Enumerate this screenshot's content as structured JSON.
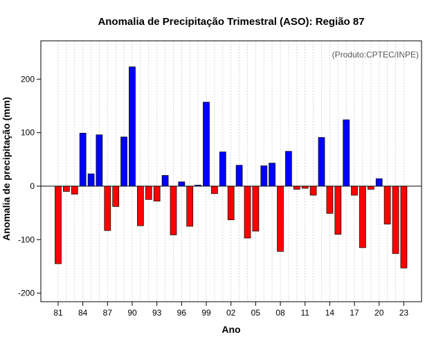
{
  "chart_data": {
    "type": "bar",
    "title": "Anomalia de Precipitação Trimestral (ASO): Região 87",
    "xlabel": "Ano",
    "ylabel": "Anomalia de precipitação (mm)",
    "credit": "(Produto:CPTEC/INPE)",
    "ylim": [
      -200,
      280
    ],
    "yticks": [
      -200,
      -100,
      0,
      100,
      200
    ],
    "xtick_labels": [
      "81",
      "84",
      "87",
      "90",
      "93",
      "96",
      "99",
      "02",
      "05",
      "08",
      "11",
      "14",
      "17",
      "20",
      "23"
    ],
    "xtick_years": [
      1981,
      1984,
      1987,
      1990,
      1993,
      1996,
      1999,
      2002,
      2005,
      2008,
      2011,
      2014,
      2017,
      2020,
      2023
    ],
    "years": [
      1981,
      1982,
      1983,
      1984,
      1985,
      1986,
      1987,
      1988,
      1989,
      1990,
      1991,
      1992,
      1993,
      1994,
      1995,
      1996,
      1997,
      1998,
      1999,
      2000,
      2001,
      2002,
      2003,
      2004,
      2005,
      2006,
      2007,
      2008,
      2009,
      2010,
      2011,
      2012,
      2013,
      2014,
      2015,
      2016,
      2017,
      2018,
      2019,
      2020,
      2021,
      2022,
      2023
    ],
    "values": [
      -145,
      -10,
      -15,
      99,
      23,
      96,
      -83,
      -38,
      92,
      223,
      -74,
      -25,
      -28,
      20,
      -91,
      8,
      -75,
      2,
      157,
      -14,
      64,
      -63,
      39,
      -97,
      -84,
      38,
      43,
      -122,
      65,
      -6,
      -4,
      -17,
      91,
      -51,
      -90,
      124,
      -17,
      -115,
      -6,
      14,
      -71,
      -126,
      -153
    ],
    "colors": {
      "positive": "#0000ff",
      "negative": "#ff0000",
      "grid": "#cccccc",
      "frame": "#000000"
    }
  }
}
